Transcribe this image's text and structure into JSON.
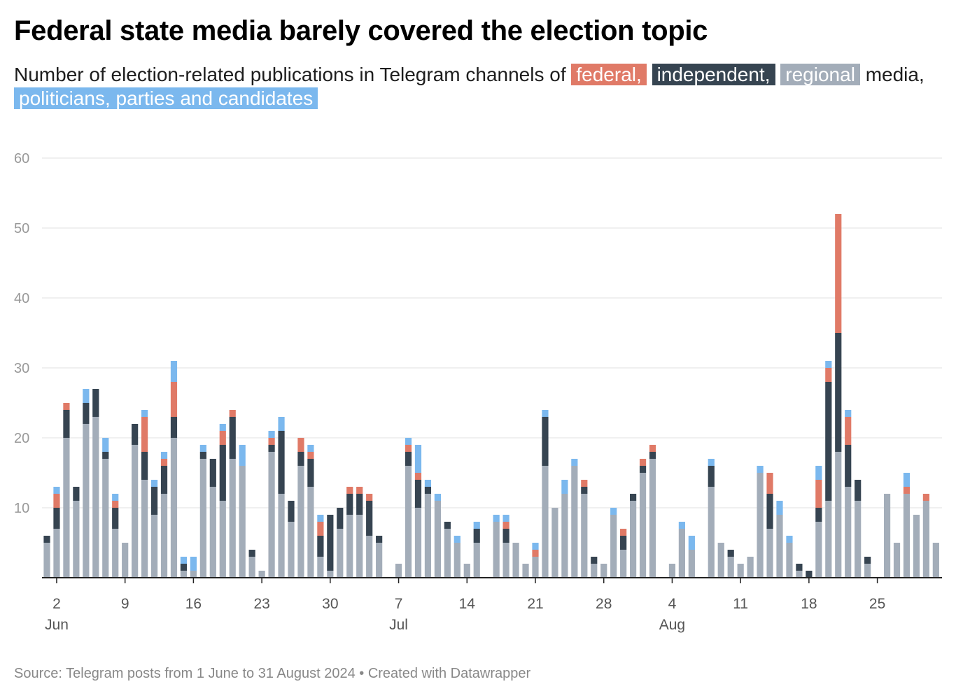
{
  "title": "Federal state media barely covered the election topic",
  "subtitle": {
    "text_before": "Number of election-related publications in Telegram channels of",
    "federal_label": "federal,",
    "independent_label": "independent,",
    "regional_label": "regional",
    "text_middle": "media,",
    "politicians_label": "politicians, parties and candidates"
  },
  "colors": {
    "federal": "#e07a67",
    "independent": "#364451",
    "regional": "#a3adb9",
    "politicians": "#7bb8ee",
    "grid": "#e0e0e0",
    "tick_text": "#999999",
    "axis_text": "#555555"
  },
  "source": "Source: Telegram posts from 1 June to 31 August 2024 • Created with Datawrapper",
  "chart_data": {
    "type": "bar",
    "stacked": true,
    "x_start": "2024-06-01",
    "x_end": "2024-08-31",
    "ylim": [
      0,
      60
    ],
    "yticks": [
      10,
      20,
      30,
      40,
      50,
      60
    ],
    "grid": true,
    "xticks": [
      {
        "date": "2024-06-02",
        "label": "2",
        "month": "Jun"
      },
      {
        "date": "2024-06-09",
        "label": "9"
      },
      {
        "date": "2024-06-16",
        "label": "16"
      },
      {
        "date": "2024-06-23",
        "label": "23"
      },
      {
        "date": "2024-06-30",
        "label": "30"
      },
      {
        "date": "2024-07-07",
        "label": "7",
        "month": "Jul"
      },
      {
        "date": "2024-07-14",
        "label": "14"
      },
      {
        "date": "2024-07-21",
        "label": "21"
      },
      {
        "date": "2024-07-28",
        "label": "28"
      },
      {
        "date": "2024-08-04",
        "label": "4",
        "month": "Aug"
      },
      {
        "date": "2024-08-11",
        "label": "11"
      },
      {
        "date": "2024-08-18",
        "label": "18"
      },
      {
        "date": "2024-08-25",
        "label": "25"
      }
    ],
    "series": [
      {
        "name": "regional",
        "values": [
          5,
          7,
          20,
          11,
          22,
          23,
          17,
          7,
          5,
          19,
          14,
          9,
          12,
          20,
          1,
          1,
          17,
          13,
          11,
          17,
          16,
          3,
          1,
          18,
          12,
          8,
          16,
          13,
          3,
          1,
          7,
          9,
          9,
          6,
          5,
          0,
          2,
          16,
          10,
          12,
          11,
          7,
          5,
          2,
          5,
          0,
          8,
          5,
          5,
          2,
          3,
          16,
          10,
          12,
          16,
          12,
          2,
          2,
          9,
          4,
          11,
          15,
          17,
          0,
          2,
          7,
          4,
          0,
          13,
          5,
          3,
          2,
          3,
          15,
          7,
          9,
          5,
          1,
          0,
          8,
          11,
          18,
          13,
          11,
          2,
          0,
          12,
          5,
          12,
          9,
          11,
          5
        ]
      },
      {
        "name": "independent",
        "values": [
          1,
          3,
          4,
          2,
          3,
          4,
          1,
          3,
          0,
          3,
          4,
          4,
          4,
          3,
          1,
          0,
          1,
          4,
          8,
          6,
          0,
          1,
          0,
          1,
          9,
          3,
          2,
          4,
          3,
          8,
          3,
          3,
          3,
          5,
          1,
          0,
          0,
          2,
          4,
          1,
          0,
          1,
          0,
          0,
          2,
          0,
          0,
          2,
          0,
          0,
          0,
          7,
          0,
          0,
          0,
          1,
          1,
          0,
          0,
          2,
          1,
          1,
          1,
          0,
          0,
          0,
          0,
          0,
          3,
          0,
          1,
          0,
          0,
          0,
          5,
          0,
          0,
          1,
          1,
          2,
          17,
          17,
          6,
          3,
          1,
          0,
          0,
          0,
          0,
          0,
          0,
          0
        ]
      },
      {
        "name": "federal",
        "values": [
          0,
          2,
          1,
          0,
          0,
          0,
          0,
          1,
          0,
          0,
          5,
          0,
          1,
          5,
          0,
          0,
          0,
          0,
          2,
          1,
          0,
          0,
          0,
          1,
          0,
          0,
          2,
          1,
          2,
          0,
          0,
          1,
          1,
          1,
          0,
          0,
          0,
          1,
          1,
          0,
          0,
          0,
          0,
          0,
          0,
          0,
          0,
          1,
          0,
          0,
          1,
          0,
          0,
          0,
          0,
          1,
          0,
          0,
          0,
          1,
          0,
          1,
          1,
          0,
          0,
          0,
          0,
          0,
          0,
          0,
          0,
          0,
          0,
          0,
          3,
          0,
          0,
          0,
          0,
          4,
          2,
          17,
          4,
          0,
          0,
          0,
          0,
          0,
          1,
          0,
          1,
          0
        ]
      },
      {
        "name": "politicians, parties and candidates",
        "values": [
          0,
          1,
          0,
          0,
          2,
          0,
          2,
          1,
          0,
          0,
          1,
          1,
          1,
          3,
          1,
          2,
          1,
          0,
          1,
          0,
          3,
          0,
          0,
          1,
          2,
          0,
          0,
          1,
          1,
          0,
          0,
          0,
          0,
          0,
          0,
          0,
          0,
          1,
          4,
          1,
          1,
          0,
          1,
          0,
          1,
          0,
          1,
          1,
          0,
          0,
          1,
          1,
          0,
          2,
          1,
          0,
          0,
          0,
          1,
          0,
          0,
          0,
          0,
          0,
          0,
          1,
          2,
          0,
          1,
          0,
          0,
          0,
          0,
          1,
          0,
          2,
          1,
          0,
          0,
          2,
          1,
          0,
          1,
          0,
          0,
          0,
          0,
          0,
          2,
          0,
          0,
          0
        ]
      }
    ]
  }
}
